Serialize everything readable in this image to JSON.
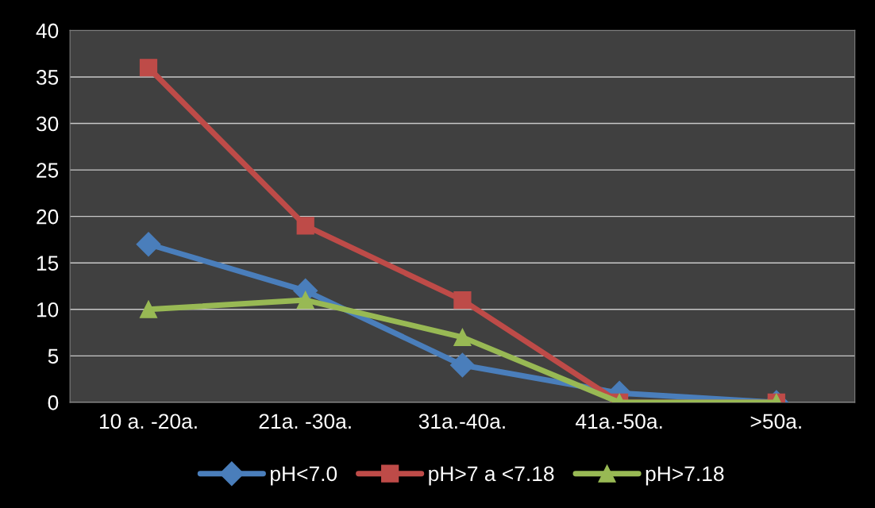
{
  "chart_data": {
    "type": "line",
    "categories": [
      "10 a. -20a.",
      "21a. -30a.",
      "31a.-40a.",
      "41a.-50a.",
      ">50a."
    ],
    "series": [
      {
        "name": "pH<7.0",
        "color": "#4a7ebb",
        "marker": "diamond",
        "values": [
          17,
          12,
          4,
          1,
          0
        ]
      },
      {
        "name": "pH>7 a <7.18",
        "color": "#be4b48",
        "marker": "square",
        "values": [
          36,
          19,
          11,
          0,
          0
        ]
      },
      {
        "name": "pH>7.18",
        "color": "#98b954",
        "marker": "triangle",
        "values": [
          10,
          11,
          7,
          0,
          0
        ]
      }
    ],
    "ylim": [
      0,
      40
    ],
    "yticks": [
      0,
      5,
      10,
      15,
      20,
      25,
      30,
      35,
      40
    ],
    "grid": "y",
    "legend": "bottom",
    "line_style": "solid"
  }
}
